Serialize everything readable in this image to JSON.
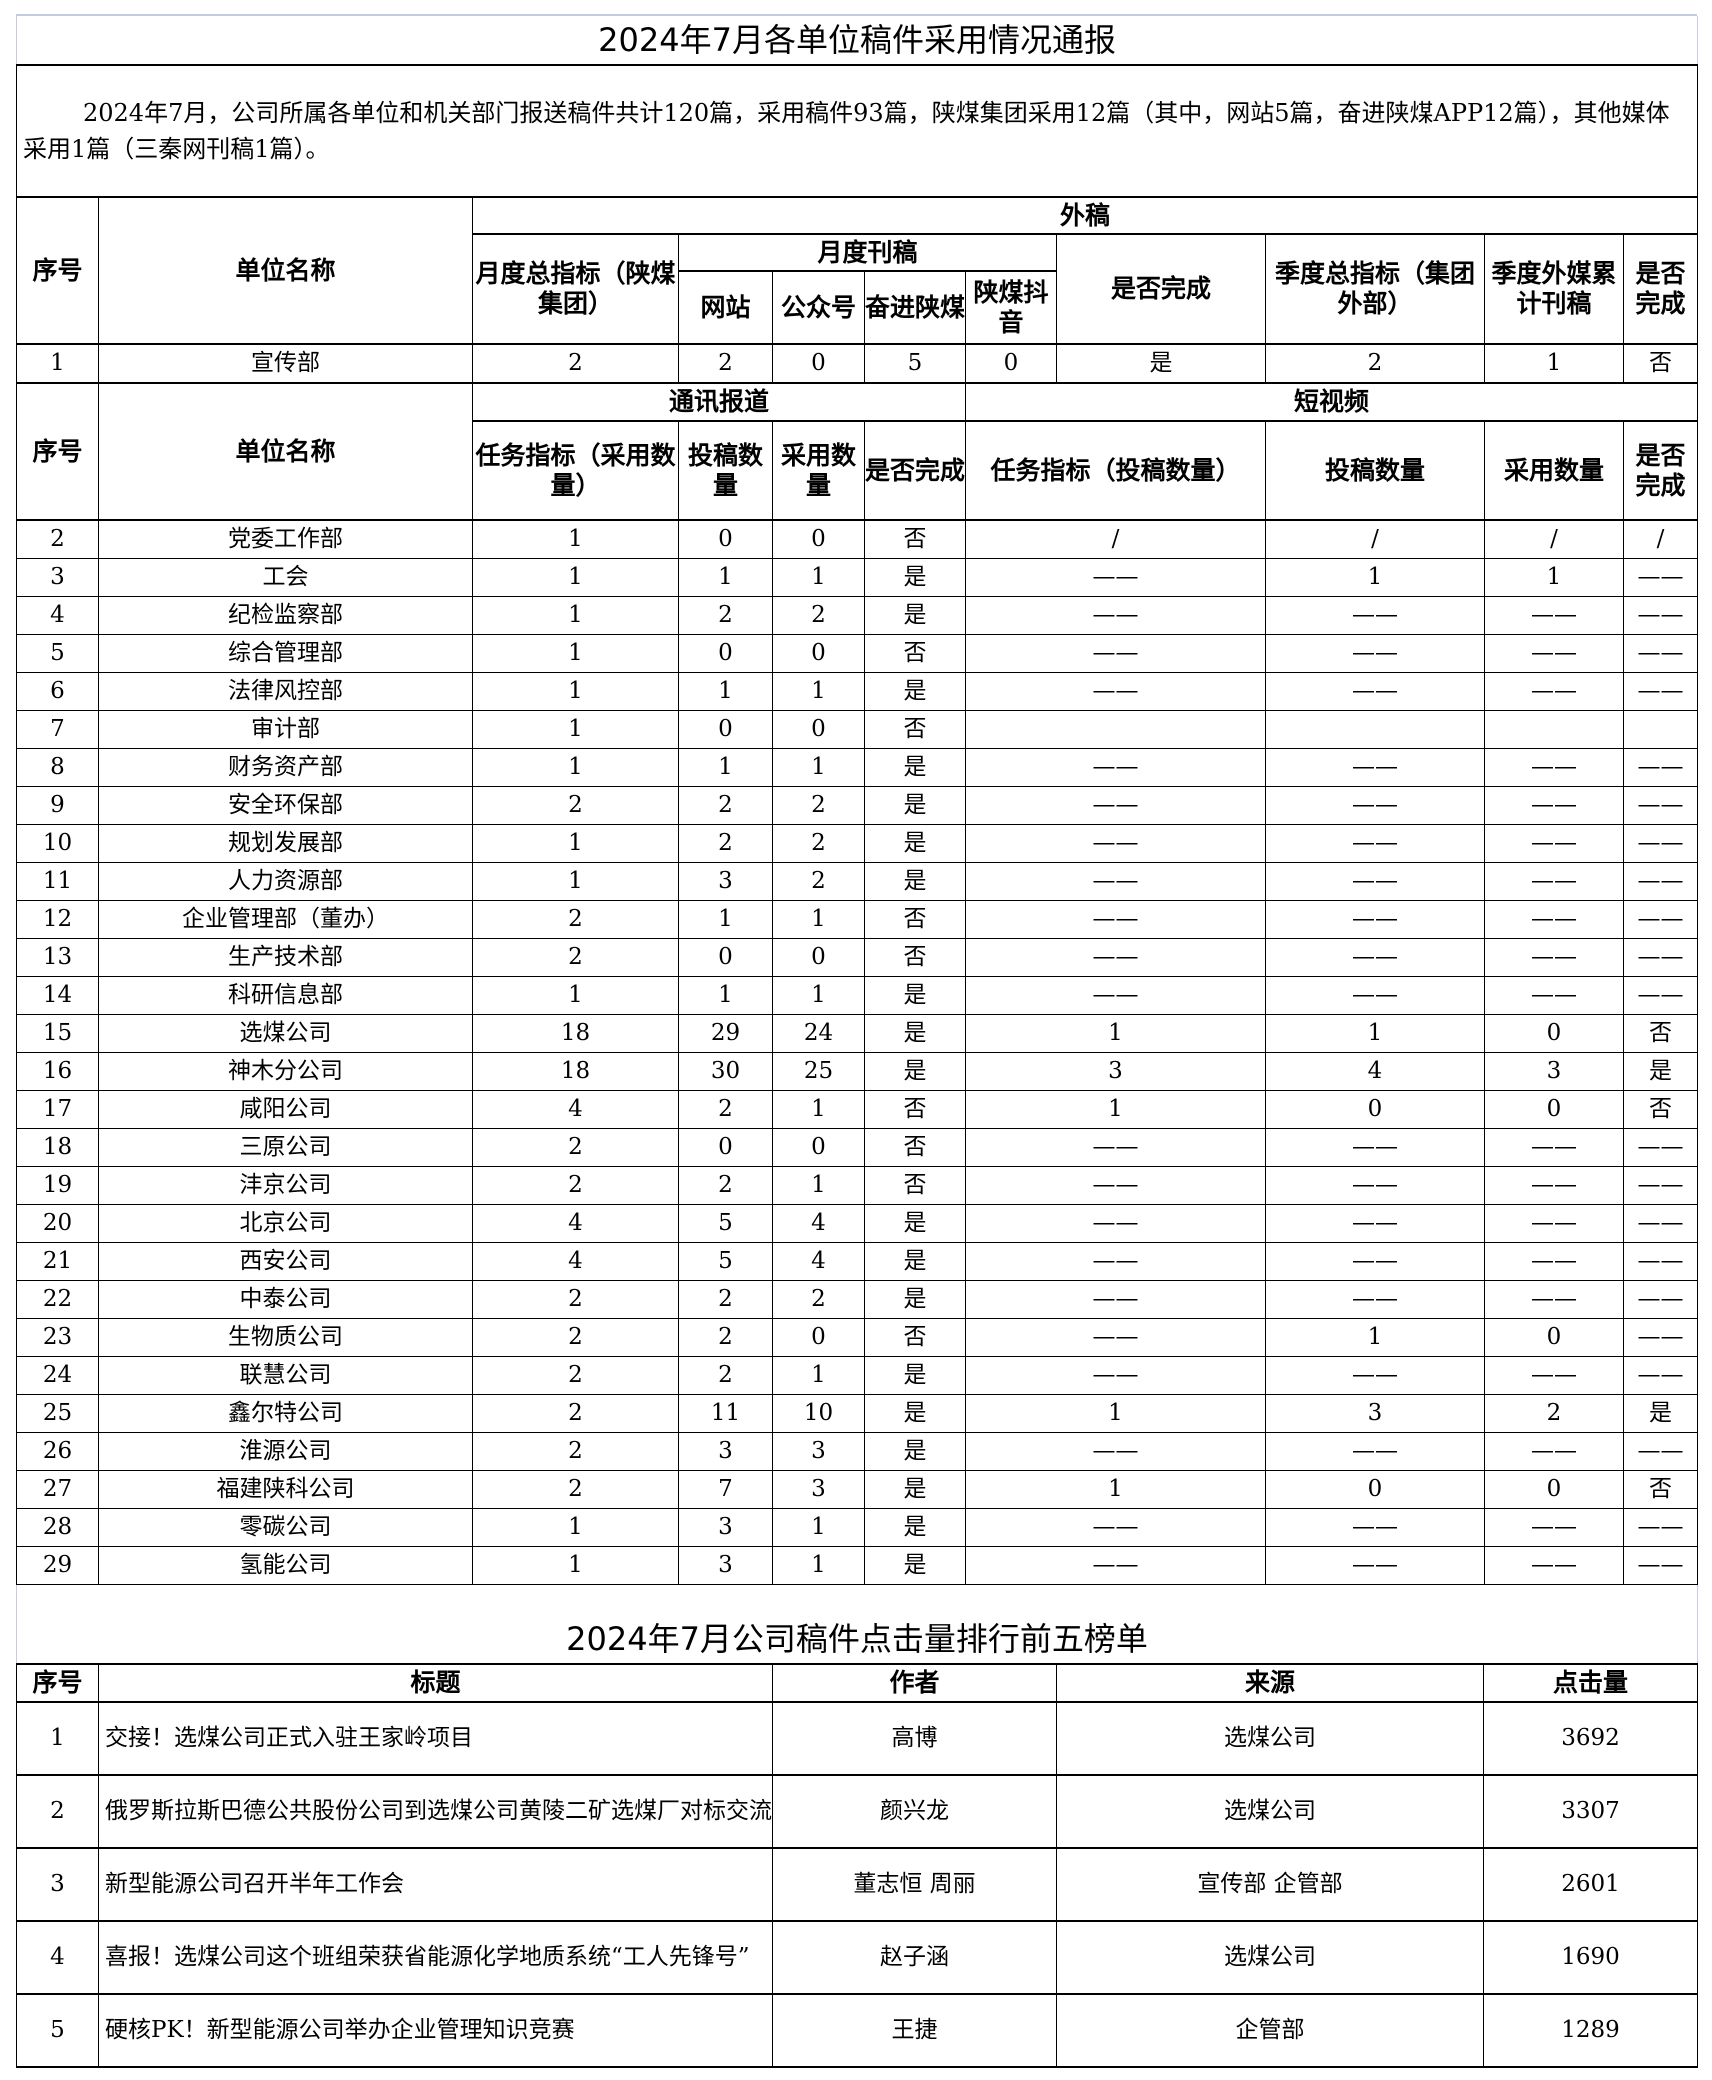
{
  "report": {
    "title": "2024年7月各单位稿件采用情况通报",
    "summary": "2024年7月，公司所属各单位和机关部门报送稿件共计120篇，采用稿件93篇，陕煤集团采用12篇（其中，网站5篇，奋进陕煤APP12篇），其他媒体采用1篇（三秦网刊稿1篇）。",
    "external": {
      "group_label": "外稿",
      "col_index": "序号",
      "col_unit": "单位名称",
      "monthly_target": "月度总指标（陕煤集团）",
      "monthly_pub": "月度刊稿",
      "sub": [
        "网站",
        "公众号",
        "奋进陕煤",
        "陕煤抖音"
      ],
      "completed": "是否完成",
      "quarter_target": "季度总指标（集团外部）",
      "quarter_total": "季度外媒累计刊稿",
      "quarter_completed": "是否完成",
      "row": [
        "1",
        "宣传部",
        "2",
        "2",
        "0",
        "5",
        "0",
        "是",
        "2",
        "1",
        "否"
      ]
    },
    "internal": {
      "col_index": "序号",
      "col_unit": "单位名称",
      "news_label": "通讯报道",
      "video_label": "短视频",
      "news_cols": [
        "任务指标（采用数量）",
        "投稿数量",
        "采用数量",
        "是否完成"
      ],
      "video_cols": [
        "任务指标（投稿数量）",
        "投稿数量",
        "采用数量",
        "是否完成"
      ],
      "rows": [
        [
          "2",
          "党委工作部",
          "1",
          "0",
          "0",
          "否",
          "/",
          "/",
          "/",
          "/"
        ],
        [
          "3",
          "工会",
          "1",
          "1",
          "1",
          "是",
          "——",
          "1",
          "1",
          "——"
        ],
        [
          "4",
          "纪检监察部",
          "1",
          "2",
          "2",
          "是",
          "——",
          "——",
          "——",
          "——"
        ],
        [
          "5",
          "综合管理部",
          "1",
          "0",
          "0",
          "否",
          "——",
          "——",
          "——",
          "——"
        ],
        [
          "6",
          "法律风控部",
          "1",
          "1",
          "1",
          "是",
          "——",
          "——",
          "——",
          "——"
        ],
        [
          "7",
          "审计部",
          "1",
          "0",
          "0",
          "否",
          "",
          "",
          "",
          ""
        ],
        [
          "8",
          "财务资产部",
          "1",
          "1",
          "1",
          "是",
          "——",
          "——",
          "——",
          "——"
        ],
        [
          "9",
          "安全环保部",
          "2",
          "2",
          "2",
          "是",
          "——",
          "——",
          "——",
          "——"
        ],
        [
          "10",
          "规划发展部",
          "1",
          "2",
          "2",
          "是",
          "——",
          "——",
          "——",
          "——"
        ],
        [
          "11",
          "人力资源部",
          "1",
          "3",
          "2",
          "是",
          "——",
          "——",
          "——",
          "——"
        ],
        [
          "12",
          "企业管理部（董办）",
          "2",
          "1",
          "1",
          "否",
          "——",
          "——",
          "——",
          "——"
        ],
        [
          "13",
          "生产技术部",
          "2",
          "0",
          "0",
          "否",
          "——",
          "——",
          "——",
          "——"
        ],
        [
          "14",
          "科研信息部",
          "1",
          "1",
          "1",
          "是",
          "——",
          "——",
          "——",
          "——"
        ],
        [
          "15",
          "选煤公司",
          "18",
          "29",
          "24",
          "是",
          "1",
          "1",
          "0",
          "否"
        ],
        [
          "16",
          "神木分公司",
          "18",
          "30",
          "25",
          "是",
          "3",
          "4",
          "3",
          "是"
        ],
        [
          "17",
          "咸阳公司",
          "4",
          "2",
          "1",
          "否",
          "1",
          "0",
          "0",
          "否"
        ],
        [
          "18",
          "三原公司",
          "2",
          "0",
          "0",
          "否",
          "——",
          "——",
          "——",
          "——"
        ],
        [
          "19",
          "沣京公司",
          "2",
          "2",
          "1",
          "否",
          "——",
          "——",
          "——",
          "——"
        ],
        [
          "20",
          "北京公司",
          "4",
          "5",
          "4",
          "是",
          "——",
          "——",
          "——",
          "——"
        ],
        [
          "21",
          "西安公司",
          "4",
          "5",
          "4",
          "是",
          "——",
          "——",
          "——",
          "——"
        ],
        [
          "22",
          "中泰公司",
          "2",
          "2",
          "2",
          "是",
          "——",
          "——",
          "——",
          "——"
        ],
        [
          "23",
          "生物质公司",
          "2",
          "2",
          "0",
          "否",
          "——",
          "1",
          "0",
          "——"
        ],
        [
          "24",
          "联慧公司",
          "2",
          "2",
          "1",
          "是",
          "——",
          "——",
          "——",
          "——"
        ],
        [
          "25",
          "鑫尔特公司",
          "2",
          "11",
          "10",
          "是",
          "1",
          "3",
          "2",
          "是"
        ],
        [
          "26",
          "淮源公司",
          "2",
          "3",
          "3",
          "是",
          "——",
          "——",
          "——",
          "——"
        ],
        [
          "27",
          "福建陕科公司",
          "2",
          "7",
          "3",
          "是",
          "1",
          "0",
          "0",
          "否"
        ],
        [
          "28",
          "零碳公司",
          "1",
          "3",
          "1",
          "是",
          "——",
          "——",
          "——",
          "——"
        ],
        [
          "29",
          "氢能公司",
          "1",
          "3",
          "1",
          "是",
          "——",
          "——",
          "——",
          "——"
        ]
      ]
    }
  },
  "ranking": {
    "title": "2024年7月公司稿件点击量排行前五榜单",
    "headers": [
      "序号",
      "标题",
      "作者",
      "来源",
      "点击量"
    ],
    "rows": [
      [
        "1",
        "交接！选煤公司正式入驻王家岭项目",
        "高博",
        "选煤公司",
        "3692"
      ],
      [
        "2",
        "俄罗斯拉斯巴德公共股份公司到选煤公司黄陵二矿选煤厂对标交流",
        "颜兴龙",
        "选煤公司",
        "3307"
      ],
      [
        "3",
        "新型能源公司召开半年工作会",
        "董志恒  周丽",
        "宣传部  企管部",
        "2601"
      ],
      [
        "4",
        "喜报！选煤公司这个班组荣获省能源化学地质系统“工人先锋号”",
        "赵子涵",
        "选煤公司",
        "1690"
      ],
      [
        "5",
        "硬核PK！新型能源公司举办企业管理知识竞赛",
        "王捷",
        "企管部",
        "1289"
      ]
    ]
  }
}
